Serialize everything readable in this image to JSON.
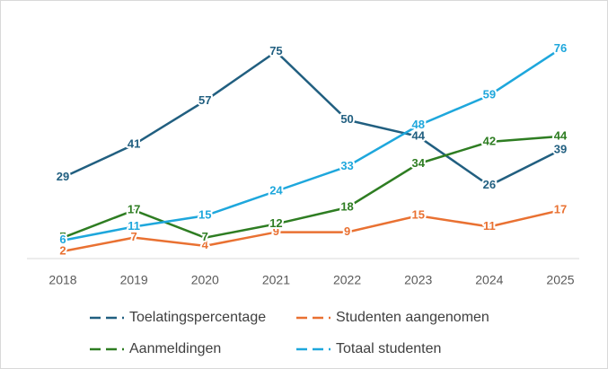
{
  "chart_data": {
    "type": "line",
    "categories": [
      "2018",
      "2019",
      "2020",
      "2021",
      "2022",
      "2023",
      "2024",
      "2025"
    ],
    "ylim": [
      0,
      85
    ],
    "series": [
      {
        "name": "Toelatingspercentage",
        "color": "#215f80",
        "values": [
          29,
          41,
          57,
          75,
          50,
          44,
          26,
          39
        ]
      },
      {
        "name": "Studenten aangenomen",
        "color": "#e97132",
        "values": [
          2,
          7,
          4,
          9,
          9,
          15,
          11,
          17
        ]
      },
      {
        "name": "Aanmeldingen",
        "color": "#2e7d22",
        "values": [
          7,
          17,
          7,
          12,
          18,
          34,
          42,
          44
        ]
      },
      {
        "name": "Totaal studenten",
        "color": "#1ea7dc",
        "values": [
          6,
          11,
          15,
          24,
          33,
          48,
          59,
          76
        ]
      }
    ],
    "legend": "bottom"
  }
}
